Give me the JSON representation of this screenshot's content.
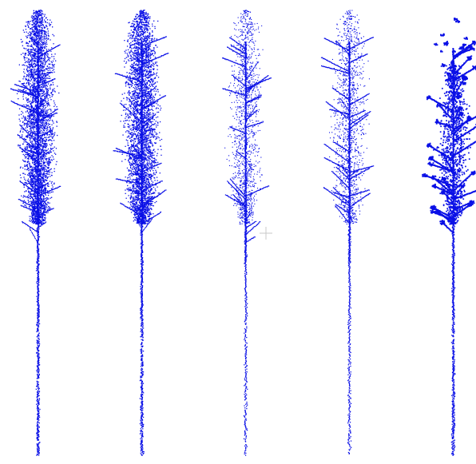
{
  "scene": {
    "background": "#ffffff",
    "point_color": "#0a10e6",
    "tree_count": 5,
    "trees": [
      {
        "id": "tree-1",
        "canopy_density": "dense",
        "render_style": "points"
      },
      {
        "id": "tree-2",
        "canopy_density": "dense",
        "render_style": "points"
      },
      {
        "id": "tree-3",
        "canopy_density": "sparse",
        "render_style": "points"
      },
      {
        "id": "tree-4",
        "canopy_density": "sparse",
        "render_style": "points"
      },
      {
        "id": "tree-5",
        "canopy_density": "segmented",
        "render_style": "leaf-clusters"
      }
    ],
    "cursor": {
      "icon": "crosshair-icon",
      "color": "#c8c8c8"
    }
  }
}
